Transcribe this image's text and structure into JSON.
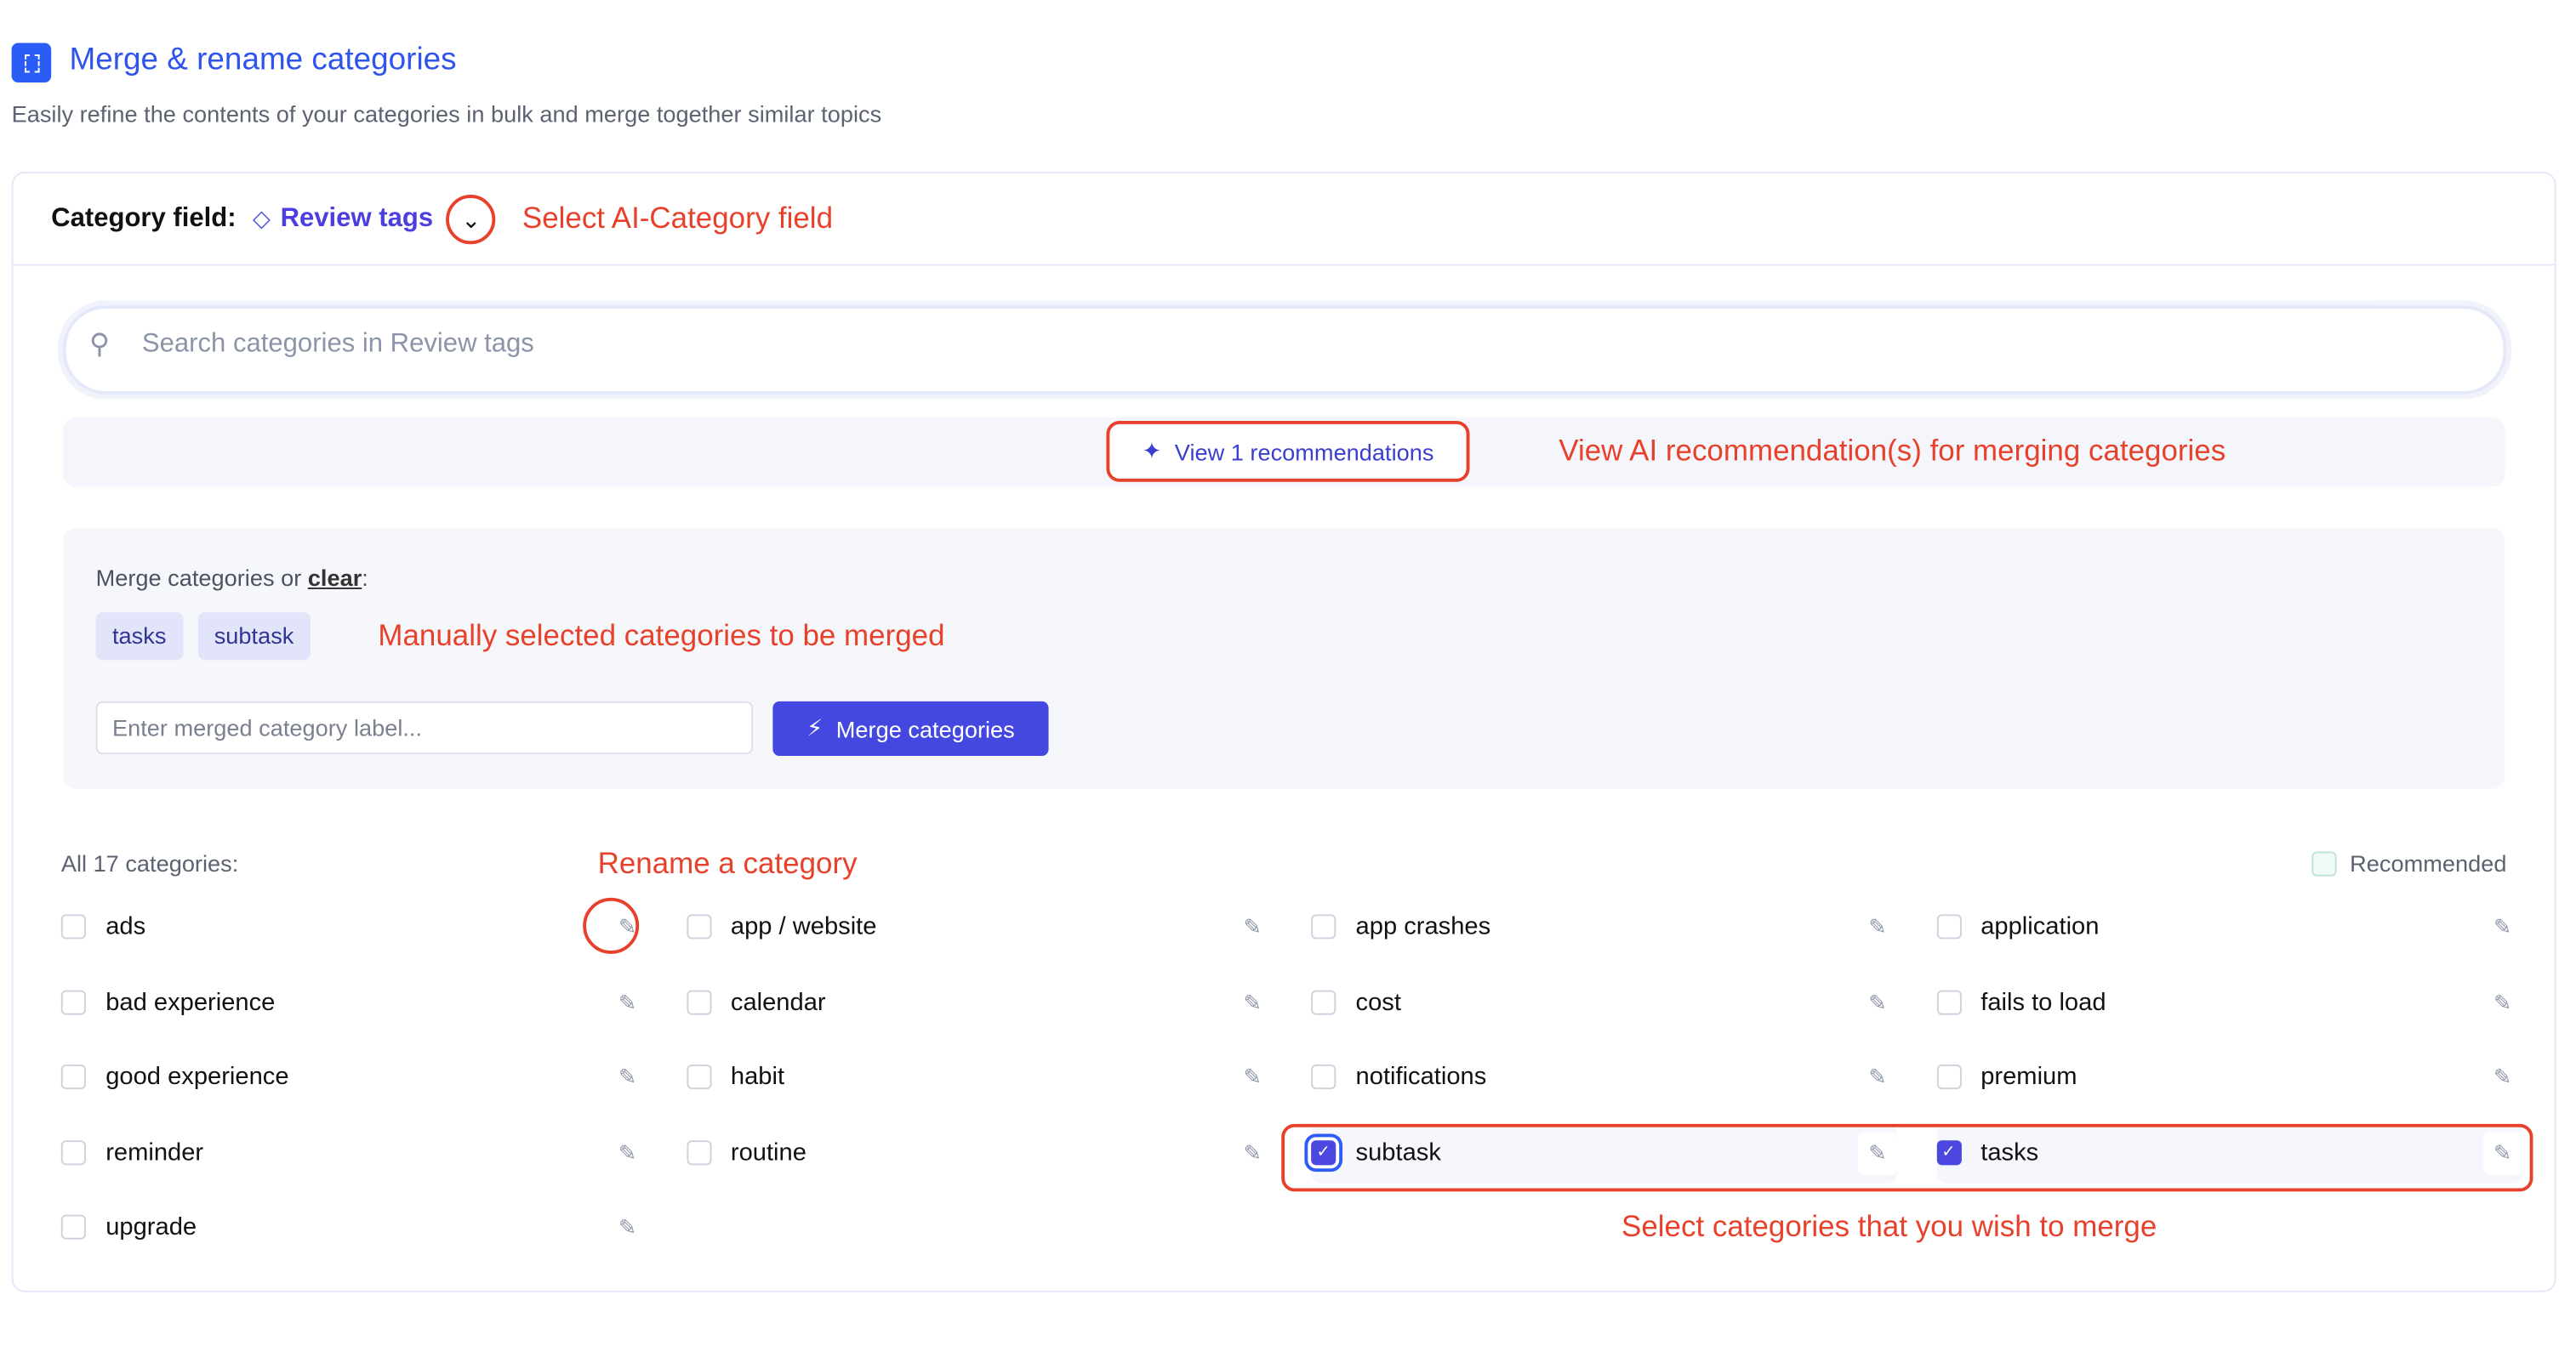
{
  "header": {
    "title": "Merge & rename categories",
    "subtitle": "Easily refine the contents of your categories in bulk and merge together similar topics",
    "icon": "grid-select-icon"
  },
  "category_field": {
    "label": "Category field:",
    "value": "Review tags"
  },
  "search": {
    "placeholder": "Search categories in Review tags",
    "value": ""
  },
  "recommendations": {
    "button_label": "View 1 recommendations"
  },
  "merge": {
    "label_prefix": "Merge categories or ",
    "clear_link": "clear",
    "label_suffix": ":",
    "selected": [
      "tasks",
      "subtask"
    ],
    "input_placeholder": "Enter merged category label...",
    "input_value": "",
    "button_label": "Merge categories"
  },
  "categories": {
    "header": "All 17 categories:",
    "legend": "Recommended",
    "items": [
      {
        "label": "ads",
        "checked": false
      },
      {
        "label": "app / website",
        "checked": false
      },
      {
        "label": "app crashes",
        "checked": false
      },
      {
        "label": "application",
        "checked": false
      },
      {
        "label": "bad experience",
        "checked": false
      },
      {
        "label": "calendar",
        "checked": false
      },
      {
        "label": "cost",
        "checked": false
      },
      {
        "label": "fails to load",
        "checked": false
      },
      {
        "label": "good experience",
        "checked": false
      },
      {
        "label": "habit",
        "checked": false
      },
      {
        "label": "notifications",
        "checked": false
      },
      {
        "label": "premium",
        "checked": false
      },
      {
        "label": "reminder",
        "checked": false
      },
      {
        "label": "routine",
        "checked": false
      },
      {
        "label": "subtask",
        "checked": true
      },
      {
        "label": "tasks",
        "checked": true
      },
      {
        "label": "upgrade",
        "checked": false
      }
    ]
  },
  "annotations": {
    "select_field": "Select AI-Category field",
    "view_recs": "View AI recommendation(s) for merging categories",
    "manual": "Manually selected categories to be merged",
    "rename": "Rename a category",
    "select_merge": "Select categories that you wish to merge"
  },
  "colors": {
    "accent": "#4447e0",
    "annotation": "#e8412b",
    "title": "#2f54eb"
  }
}
